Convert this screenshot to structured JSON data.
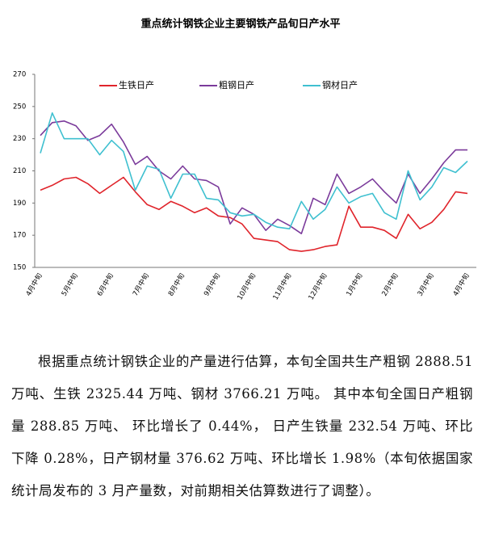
{
  "chart_data": {
    "type": "line",
    "title": "重点统计钢铁企业主要钢铁产品旬日产水平",
    "categories": [
      "4月中旬",
      null,
      null,
      "5月中旬",
      null,
      null,
      "6月中旬",
      null,
      null,
      "7月中旬",
      null,
      null,
      "8月中旬",
      null,
      null,
      "9月中旬",
      null,
      null,
      "10月中旬",
      null,
      null,
      "11月中旬",
      null,
      null,
      "12月中旬",
      null,
      null,
      "1月中旬",
      null,
      null,
      "2月中旬",
      null,
      null,
      "3月中旬",
      null,
      null,
      "4月中旬"
    ],
    "series": [
      {
        "name": "生铁日产",
        "color": "#e0242b",
        "values": [
          198,
          201,
          205,
          206,
          202,
          196,
          201,
          206,
          197,
          189,
          186,
          191,
          188,
          184,
          187,
          182,
          181,
          177,
          168,
          167,
          166,
          161,
          160,
          161,
          163,
          164,
          188,
          175,
          175,
          173,
          168,
          183,
          174,
          178,
          186,
          197,
          196
        ]
      },
      {
        "name": "粗钢日产",
        "color": "#7b3b9b",
        "values": [
          232,
          240,
          241,
          238,
          229,
          232,
          239,
          228,
          214,
          219,
          210,
          205,
          213,
          205,
          204,
          200,
          177,
          187,
          183,
          173,
          180,
          176,
          171,
          193,
          189,
          208,
          196,
          200,
          205,
          197,
          190,
          208,
          196,
          205,
          215,
          223,
          223
        ]
      },
      {
        "name": "钢材日产",
        "color": "#3fc0d0",
        "values": [
          221,
          246,
          230,
          230,
          230,
          220,
          229,
          222,
          198,
          213,
          211,
          193,
          208,
          208,
          193,
          192,
          184,
          182,
          183,
          178,
          175,
          174,
          191,
          180,
          186,
          200,
          190,
          194,
          196,
          184,
          180,
          210,
          192,
          200,
          212,
          209,
          216
        ]
      }
    ],
    "ylim": [
      150,
      270
    ],
    "yticks": [
      150,
      170,
      190,
      210,
      230,
      250,
      270
    ],
    "grid": false,
    "legend": "top"
  },
  "article": {
    "paragraph": "根据重点统计钢铁企业的产量进行估算，本旬全国共生产粗钢 2888.51 万吨、生铁 2325.44 万吨、钢材 3766.21 万吨。 其中本旬全国日产粗钢量 288.85 万吨、 环比增长了 0.44%， 日产生铁量 232.54 万吨、环比下降 0.28%，日产钢材量 376.62 万吨、环比增长 1.98%（本旬依据国家统计局发布的 3 月产量数，对前期相关估算数进行了调整）。"
  }
}
